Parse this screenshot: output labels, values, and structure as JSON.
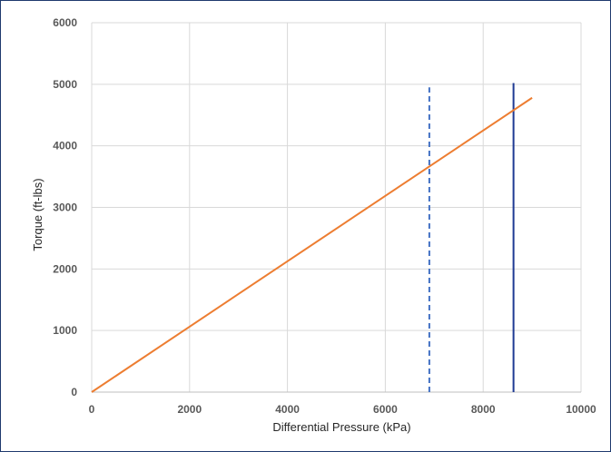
{
  "chart_data": {
    "type": "line",
    "title": "",
    "xlabel": "Differential Pressure (kPa)",
    "ylabel": "Torque (ft-lbs)",
    "xlim": [
      0,
      10000
    ],
    "ylim": [
      0,
      6000
    ],
    "x_ticks": [
      0,
      2000,
      4000,
      6000,
      8000,
      10000
    ],
    "y_ticks": [
      0,
      1000,
      2000,
      3000,
      4000,
      5000,
      6000
    ],
    "x_tick_labels": [
      "0",
      "2000",
      "4000",
      "6000",
      "8000",
      "10000"
    ],
    "y_tick_labels": [
      "0",
      "1000",
      "2000",
      "3000",
      "4000",
      "5000",
      "6000"
    ],
    "grid": true,
    "legend": "none",
    "series": [
      {
        "x": [
          0,
          9000
        ],
        "y": [
          0,
          4780
        ],
        "color": "#ed7d31",
        "style": "solid"
      }
    ],
    "vertical_lines": [
      {
        "x": 6900,
        "y": [
          0,
          4950
        ],
        "color": "#4472c4",
        "style": "dashed"
      },
      {
        "x": 8620,
        "y": [
          0,
          5020
        ],
        "color": "#1f3a93",
        "style": "solid"
      }
    ]
  }
}
